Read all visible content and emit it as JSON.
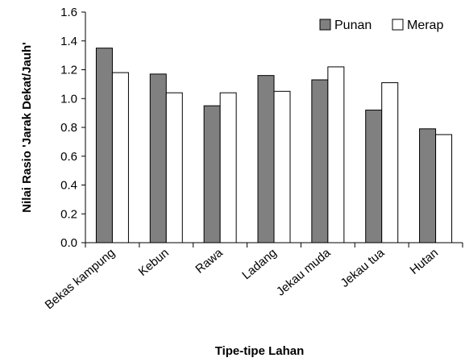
{
  "chart_data": {
    "type": "bar",
    "title": "",
    "xlabel": "Tipe-tipe Lahan",
    "ylabel": "Nilai Rasio 'Jarak Dekat/Jauh'",
    "ylim": [
      0,
      1.6
    ],
    "yticks": [
      "0.0",
      "0.2",
      "0.4",
      "0.6",
      "0.8",
      "1.0",
      "1.2",
      "1.4",
      "1.6"
    ],
    "categories": [
      "Bekas kampung",
      "Kebun",
      "Rawa",
      "Ladang",
      "Jekau muda",
      "Jekau tua",
      "Hutan"
    ],
    "series": [
      {
        "name": "Punan",
        "color": "#808080",
        "values": [
          1.35,
          1.17,
          0.95,
          1.16,
          1.13,
          0.92,
          0.79
        ]
      },
      {
        "name": "Merap",
        "color": "#ffffff",
        "values": [
          1.18,
          1.04,
          1.04,
          1.05,
          1.22,
          1.11,
          0.75
        ]
      }
    ],
    "grid": false,
    "legend": "top-right"
  }
}
